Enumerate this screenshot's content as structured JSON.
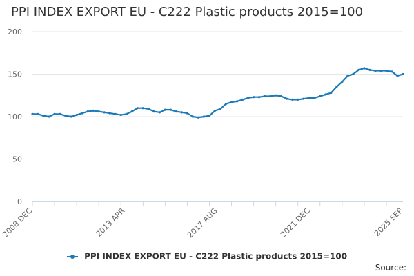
{
  "chart_data": {
    "type": "line",
    "title": "PPI INDEX EXPORT EU - C222 Plastic products 2015=100",
    "xlabel": "",
    "ylabel": "",
    "ylim": [
      0,
      200
    ],
    "yticks": [
      0,
      50,
      100,
      150,
      200
    ],
    "xtick_labels": [
      "2008 DEC",
      "2013 APR",
      "2017 AUG",
      "2021 DEC",
      "2025 SEP"
    ],
    "x_range": [
      "2008-12",
      "2025-09"
    ],
    "grid": true,
    "legend_position": "bottom",
    "series": [
      {
        "name": "PPI INDEX EXPORT EU - C222 Plastic products 2015=100",
        "color": "#1a7ab8",
        "x": [
          "2008-12",
          "2009-03",
          "2009-06",
          "2009-09",
          "2009-12",
          "2010-03",
          "2010-06",
          "2010-09",
          "2010-12",
          "2011-03",
          "2011-06",
          "2011-09",
          "2011-12",
          "2012-03",
          "2012-06",
          "2012-09",
          "2012-12",
          "2013-03",
          "2013-06",
          "2013-09",
          "2013-12",
          "2014-03",
          "2014-06",
          "2014-09",
          "2014-12",
          "2015-03",
          "2015-06",
          "2015-09",
          "2015-12",
          "2016-03",
          "2016-06",
          "2016-09",
          "2016-12",
          "2017-03",
          "2017-06",
          "2017-09",
          "2017-12",
          "2018-03",
          "2018-06",
          "2018-09",
          "2018-12",
          "2019-03",
          "2019-06",
          "2019-09",
          "2019-12",
          "2020-03",
          "2020-06",
          "2020-09",
          "2020-12",
          "2021-03",
          "2021-06",
          "2021-09",
          "2021-12",
          "2022-03",
          "2022-06",
          "2022-09",
          "2022-12",
          "2023-03",
          "2023-06",
          "2023-09",
          "2023-12",
          "2024-03",
          "2024-06",
          "2024-09",
          "2024-12",
          "2025-03",
          "2025-06",
          "2025-09"
        ],
        "values": [
          103,
          103,
          101,
          100,
          103,
          103,
          101,
          100,
          102,
          104,
          106,
          107,
          106,
          105,
          104,
          103,
          102,
          103,
          106,
          110,
          110,
          109,
          106,
          105,
          108,
          108,
          106,
          105,
          104,
          100,
          99,
          100,
          101,
          107,
          109,
          115,
          117,
          118,
          120,
          122,
          123,
          123,
          124,
          124,
          125,
          124,
          121,
          120,
          120,
          121,
          122,
          122,
          124,
          126,
          128,
          135,
          141,
          148,
          150,
          155,
          157,
          155,
          154,
          154,
          154,
          153,
          148,
          150
        ]
      }
    ]
  },
  "source_label": "Source:"
}
